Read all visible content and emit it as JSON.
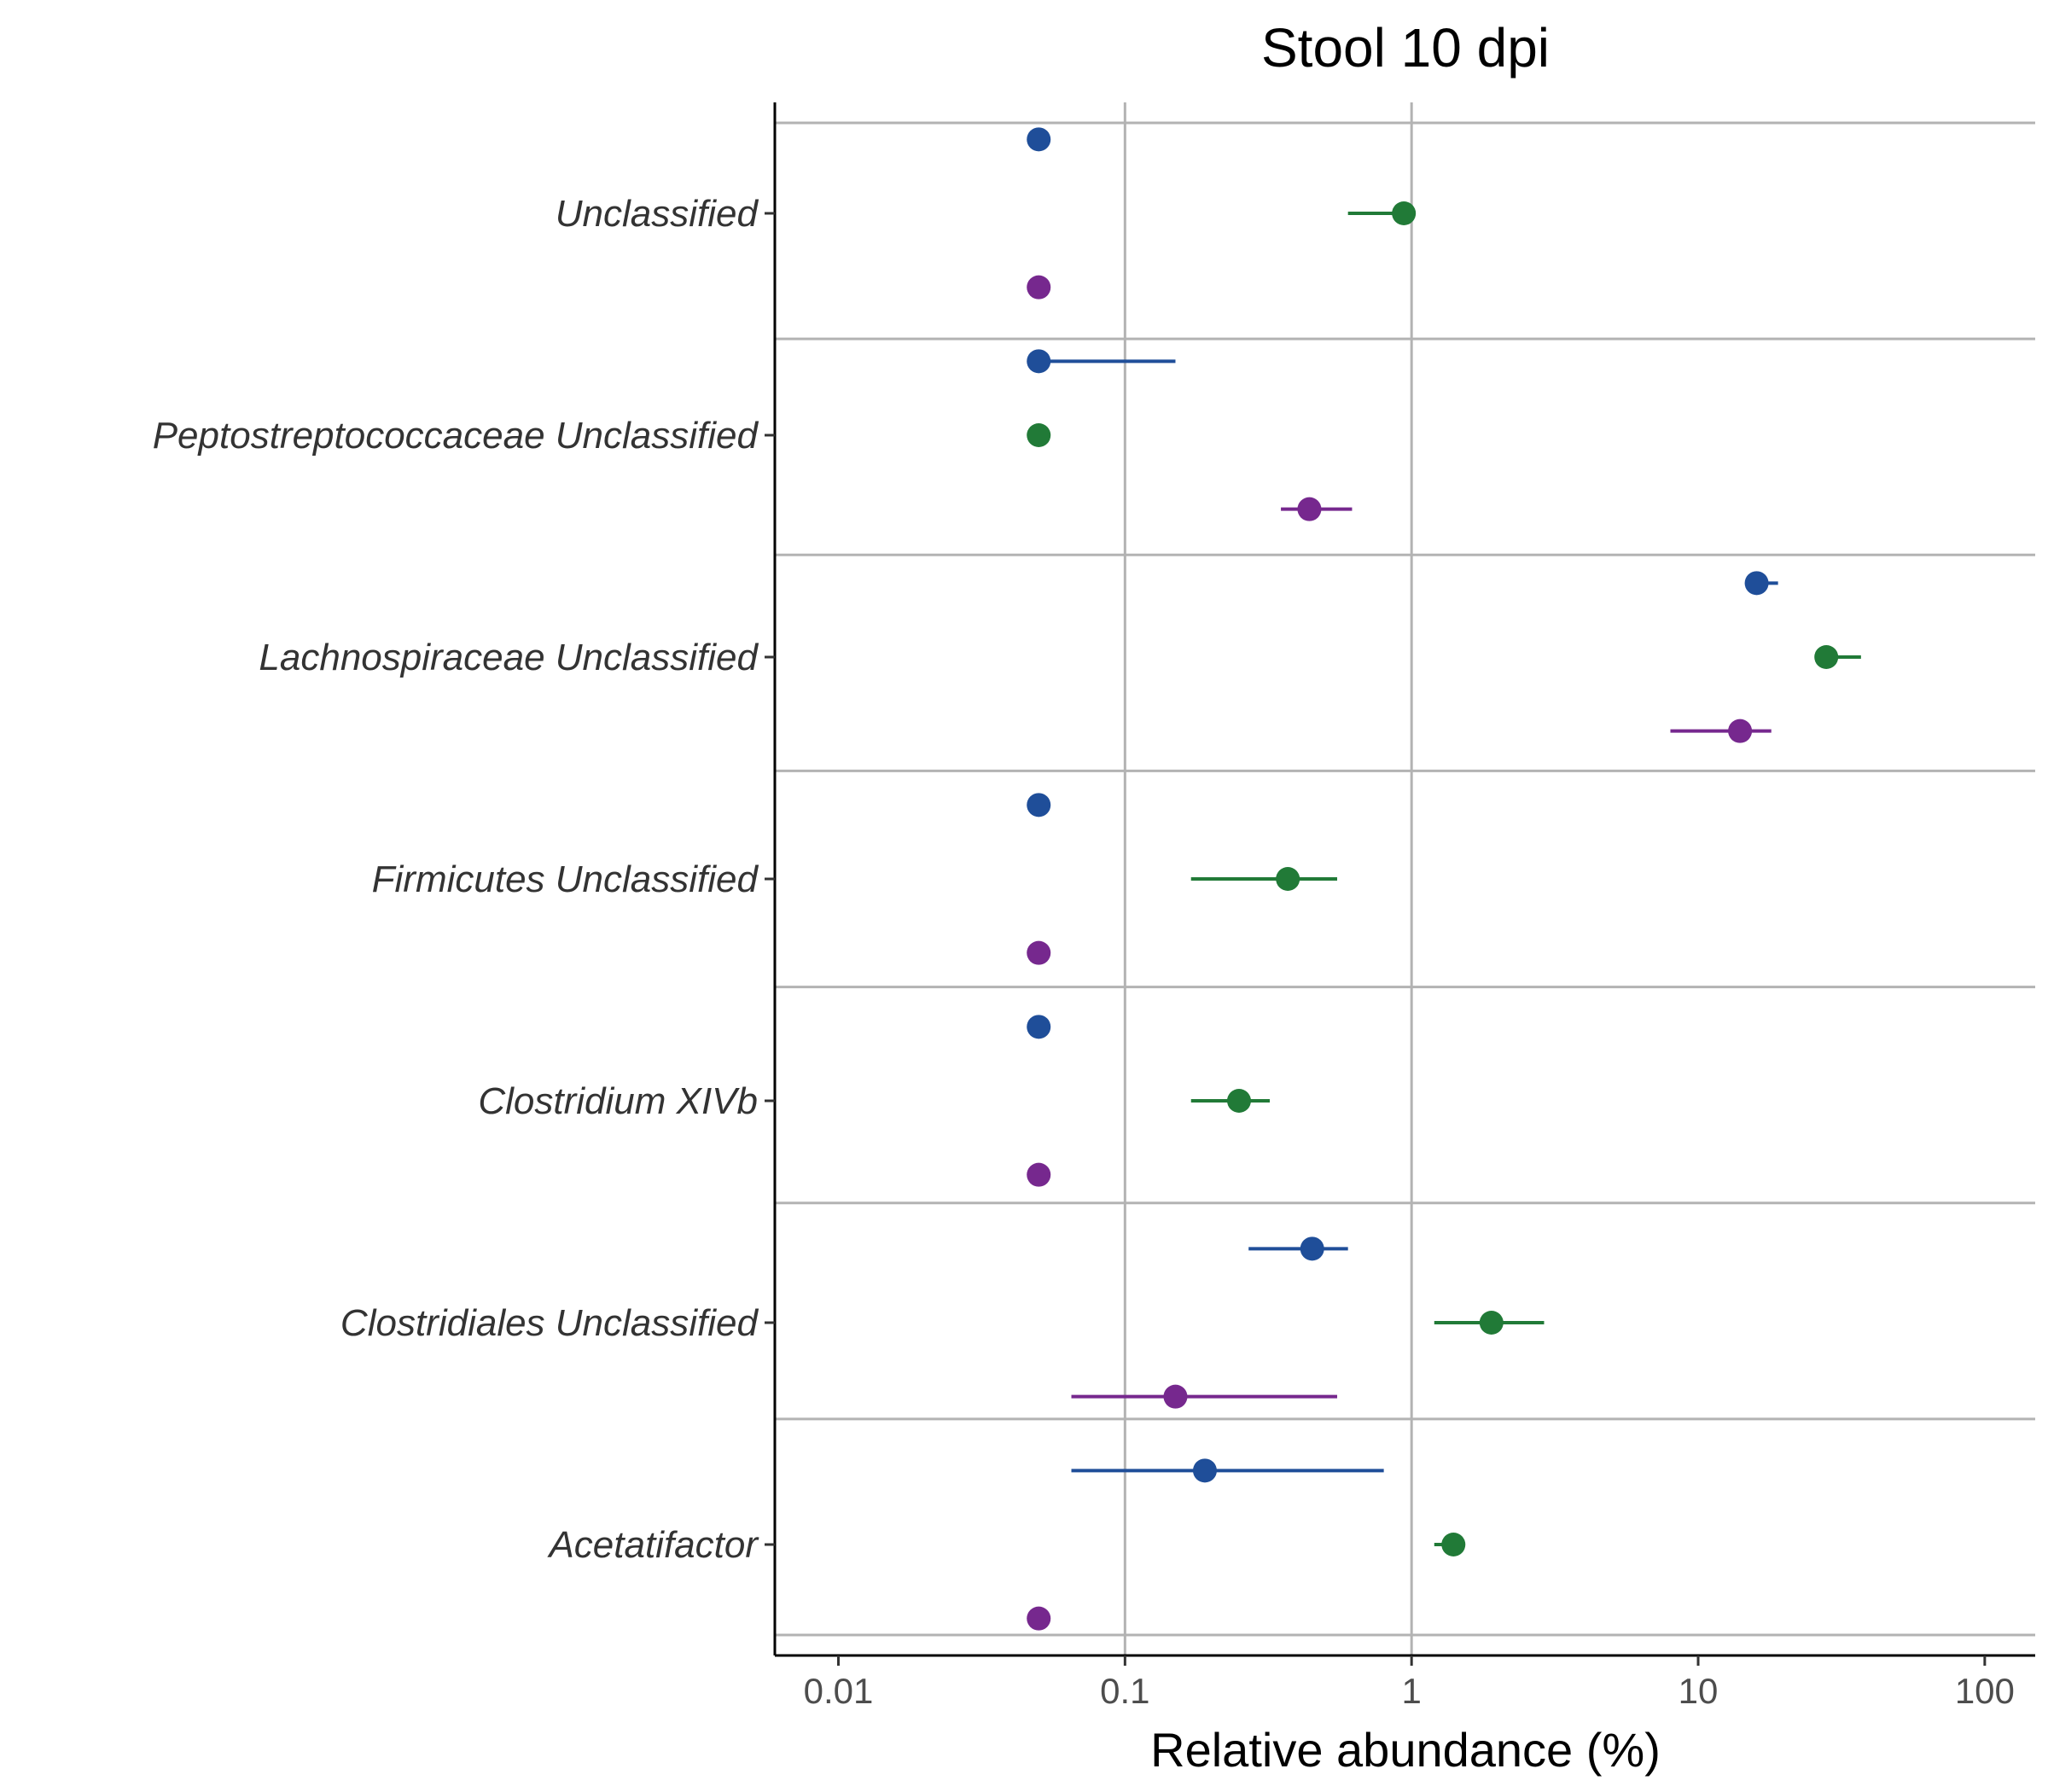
{
  "chart_data": {
    "type": "scatter",
    "title": "Stool 10 dpi",
    "xlabel": "Relative abundance (%)",
    "ylabel": "",
    "x_scale": "log10",
    "xlim": [
      0.006,
      150
    ],
    "x_ticks": [
      {
        "value": 0.01,
        "label": "0.01"
      },
      {
        "value": 0.1,
        "label": "0.1"
      },
      {
        "value": 1,
        "label": "1"
      },
      {
        "value": 10,
        "label": "10"
      },
      {
        "value": 100,
        "label": "100"
      }
    ],
    "grid": {
      "vertical": [
        0.1,
        1
      ],
      "horizontal_separators": true
    },
    "legend": "none",
    "series_colors": {
      "blue": "#1f4e99",
      "green": "#217a37",
      "purple": "#76288e"
    },
    "categories": [
      "Unclassified",
      "Peptostreptococcaceae Unclassified",
      "Lachnospiraceae Unclassified",
      "Firmicutes Unclassified",
      "Clostridium XIVb",
      "Clostridiales Unclassified",
      "Acetatifactor"
    ],
    "series": [
      {
        "color": "blue",
        "points": [
          {
            "category": "Unclassified",
            "x": 0.05
          },
          {
            "category": "Peptostreptococcaceae Unclassified",
            "x": 0.05,
            "xmin": 0.05,
            "xmax": 0.15
          },
          {
            "category": "Lachnospiraceae Unclassified",
            "x": 16,
            "xmin": 16,
            "xmax": 19
          },
          {
            "category": "Firmicutes Unclassified",
            "x": 0.05
          },
          {
            "category": "Clostridium XIVb",
            "x": 0.05
          },
          {
            "category": "Clostridiales Unclassified",
            "x": 0.45,
            "xmin": 0.27,
            "xmax": 0.6
          },
          {
            "category": "Acetatifactor",
            "x": 0.19,
            "xmin": 0.065,
            "xmax": 0.8
          }
        ]
      },
      {
        "color": "green",
        "points": [
          {
            "category": "Unclassified",
            "x": 0.94,
            "xmin": 0.6,
            "xmax": 0.94
          },
          {
            "category": "Peptostreptococcaceae Unclassified",
            "x": 0.05
          },
          {
            "category": "Lachnospiraceae Unclassified",
            "x": 28,
            "xmin": 26,
            "xmax": 37
          },
          {
            "category": "Firmicutes Unclassified",
            "x": 0.37,
            "xmin": 0.17,
            "xmax": 0.55
          },
          {
            "category": "Clostridium XIVb",
            "x": 0.25,
            "xmin": 0.17,
            "xmax": 0.32
          },
          {
            "category": "Clostridiales Unclassified",
            "x": 1.9,
            "xmin": 1.2,
            "xmax": 2.9
          },
          {
            "category": "Acetatifactor",
            "x": 1.4,
            "xmin": 1.2,
            "xmax": 1.4
          }
        ]
      },
      {
        "color": "purple",
        "points": [
          {
            "category": "Unclassified",
            "x": 0.05
          },
          {
            "category": "Peptostreptococcaceae Unclassified",
            "x": 0.44,
            "xmin": 0.35,
            "xmax": 0.62
          },
          {
            "category": "Lachnospiraceae Unclassified",
            "x": 14,
            "xmin": 8,
            "xmax": 18
          },
          {
            "category": "Firmicutes Unclassified",
            "x": 0.05
          },
          {
            "category": "Clostridium XIVb",
            "x": 0.05
          },
          {
            "category": "Clostridiales Unclassified",
            "x": 0.15,
            "xmin": 0.065,
            "xmax": 0.55
          },
          {
            "category": "Acetatifactor",
            "x": 0.05
          }
        ]
      }
    ]
  }
}
